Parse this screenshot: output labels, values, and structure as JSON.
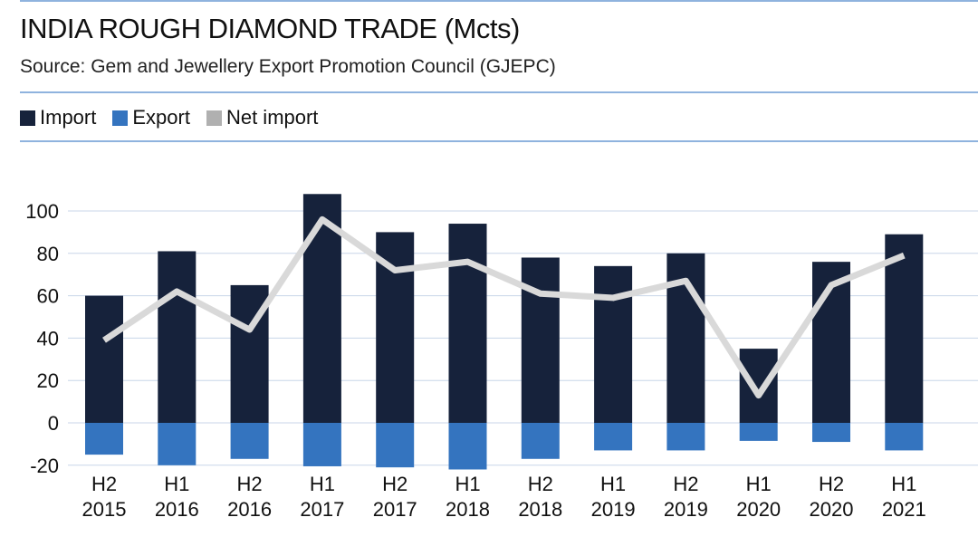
{
  "chart_data": {
    "type": "bar",
    "title": "INDIA ROUGH DIAMOND TRADE (Mcts)",
    "subtitle": "Source: Gem and Jewellery Export Promotion Council (GJEPC)",
    "xlabel": "",
    "ylabel": "",
    "ylim": [
      -20,
      110
    ],
    "yticks": [
      -20,
      0,
      20,
      40,
      60,
      80,
      100
    ],
    "grid": true,
    "legend_placement": "top-left",
    "categories": [
      [
        "H2",
        "2015"
      ],
      [
        "H1",
        "2016"
      ],
      [
        "H2",
        "2016"
      ],
      [
        "H1",
        "2017"
      ],
      [
        "H2",
        "2017"
      ],
      [
        "H1",
        "2018"
      ],
      [
        "H2",
        "2018"
      ],
      [
        "H1",
        "2019"
      ],
      [
        "H2",
        "2019"
      ],
      [
        "H1",
        "2020"
      ],
      [
        "H2",
        "2020"
      ],
      [
        "H1",
        "2021"
      ]
    ],
    "series": [
      {
        "name": "Import",
        "type": "bar",
        "color": "#16223b",
        "values": [
          60,
          81,
          65,
          108,
          90,
          94,
          78,
          74,
          80,
          35,
          76,
          89
        ]
      },
      {
        "name": "Export",
        "type": "bar",
        "color": "#3474bf",
        "values": [
          -15,
          -20,
          -17,
          -20.5,
          -21,
          -22,
          -17,
          -13,
          -13,
          -8.5,
          -9,
          -13
        ]
      },
      {
        "name": "Net import",
        "type": "line",
        "color": "#d9d9d9",
        "values": [
          39,
          62,
          44,
          96,
          72,
          76,
          61,
          59,
          67,
          13,
          65,
          79
        ]
      }
    ]
  }
}
